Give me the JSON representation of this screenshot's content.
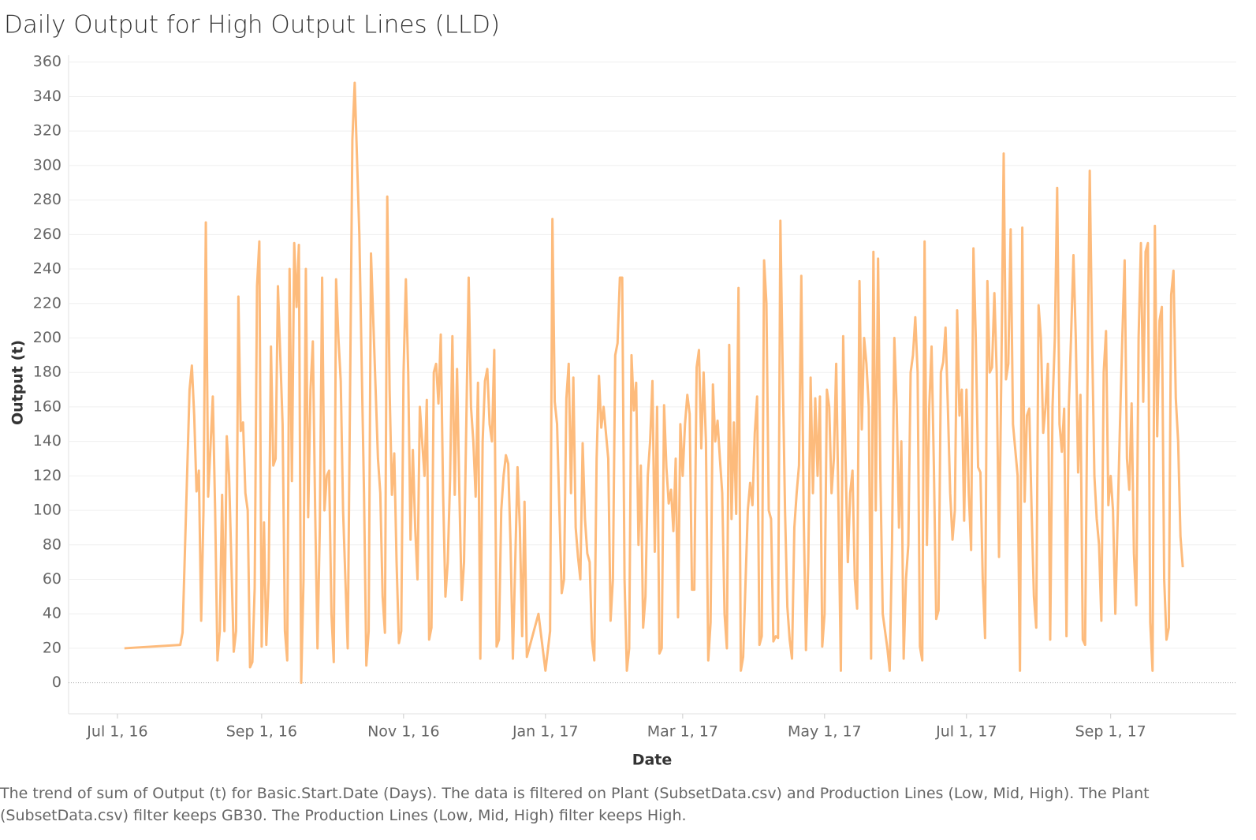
{
  "chart_data": {
    "type": "line",
    "title": "Daily Output for High Output Lines (LLD)",
    "xlabel": "Date",
    "ylabel": "Output (t)",
    "caption": "The trend of sum of Output (t) for Basic.Start.Date (Days). The data is filtered on Plant (SubsetData.csv) and Production Lines (Low, Mid, High). The Plant (SubsetData.csv) filter keeps GB30. The Production Lines (Low, Mid, High) filter keeps High.",
    "color": "#fdbb7c",
    "grid": true,
    "ylim": [
      -18,
      364
    ],
    "yticks": [
      0,
      20,
      40,
      60,
      80,
      100,
      120,
      140,
      160,
      180,
      200,
      220,
      240,
      260,
      280,
      300,
      320,
      340,
      360
    ],
    "xlim": [
      "2016-06-10",
      "2017-10-25"
    ],
    "xticks": [
      {
        "value": "2016-07-01",
        "label": "Jul 1, 16"
      },
      {
        "value": "2016-09-01",
        "label": "Sep 1, 16"
      },
      {
        "value": "2016-11-01",
        "label": "Nov 1, 16"
      },
      {
        "value": "2017-01-01",
        "label": "Jan 1, 17"
      },
      {
        "value": "2017-03-01",
        "label": "Mar 1, 17"
      },
      {
        "value": "2017-05-01",
        "label": "May 1, 17"
      },
      {
        "value": "2017-07-01",
        "label": "Jul 1, 17"
      },
      {
        "value": "2017-09-01",
        "label": "Sep 1, 17"
      }
    ],
    "x": [
      "2016-07-04",
      "2016-07-28",
      "2016-07-29",
      "2016-08-01",
      "2016-08-02",
      "2016-08-03",
      "2016-08-04",
      "2016-08-05",
      "2016-08-06",
      "2016-08-07",
      "2016-08-08",
      "2016-08-09",
      "2016-08-11",
      "2016-08-12",
      "2016-08-13",
      "2016-08-14",
      "2016-08-15",
      "2016-08-16",
      "2016-08-17",
      "2016-08-18",
      "2016-08-20",
      "2016-08-21",
      "2016-08-22",
      "2016-08-23",
      "2016-08-24",
      "2016-08-25",
      "2016-08-26",
      "2016-08-27",
      "2016-08-28",
      "2016-08-29",
      "2016-08-30",
      "2016-08-31",
      "2016-09-01",
      "2016-09-02",
      "2016-09-03",
      "2016-09-04",
      "2016-09-05",
      "2016-09-06",
      "2016-09-07",
      "2016-09-08",
      "2016-09-10",
      "2016-09-11",
      "2016-09-12",
      "2016-09-13",
      "2016-09-14",
      "2016-09-15",
      "2016-09-16",
      "2016-09-17",
      "2016-09-18",
      "2016-09-19",
      "2016-09-20",
      "2016-09-21",
      "2016-09-22",
      "2016-09-23",
      "2016-09-24",
      "2016-09-25",
      "2016-09-26",
      "2016-09-27",
      "2016-09-28",
      "2016-09-29",
      "2016-09-30",
      "2016-10-01",
      "2016-10-02",
      "2016-10-03",
      "2016-10-04",
      "2016-10-05",
      "2016-10-06",
      "2016-10-08",
      "2016-10-10",
      "2016-10-11",
      "2016-10-13",
      "2016-10-15",
      "2016-10-16",
      "2016-10-17",
      "2016-10-18",
      "2016-10-20",
      "2016-10-21",
      "2016-10-22",
      "2016-10-23",
      "2016-10-24",
      "2016-10-25",
      "2016-10-26",
      "2016-10-27",
      "2016-10-28",
      "2016-10-29",
      "2016-10-30",
      "2016-10-31",
      "2016-11-01",
      "2016-11-02",
      "2016-11-03",
      "2016-11-04",
      "2016-11-05",
      "2016-11-06",
      "2016-11-07",
      "2016-11-08",
      "2016-11-09",
      "2016-11-10",
      "2016-11-11",
      "2016-11-12",
      "2016-11-13",
      "2016-11-14",
      "2016-11-15",
      "2016-11-16",
      "2016-11-17",
      "2016-11-18",
      "2016-11-19",
      "2016-11-20",
      "2016-11-21",
      "2016-11-22",
      "2016-11-23",
      "2016-11-24",
      "2016-11-25",
      "2016-11-26",
      "2016-11-27",
      "2016-11-29",
      "2016-11-30",
      "2016-12-01",
      "2016-12-02",
      "2016-12-03",
      "2016-12-04",
      "2016-12-05",
      "2016-12-06",
      "2016-12-07",
      "2016-12-08",
      "2016-12-09",
      "2016-12-10",
      "2016-12-11",
      "2016-12-12",
      "2016-12-13",
      "2016-12-14",
      "2016-12-15",
      "2016-12-16",
      "2016-12-17",
      "2016-12-18",
      "2016-12-20",
      "2016-12-21",
      "2016-12-22",
      "2016-12-23",
      "2016-12-24",
      "2016-12-27",
      "2016-12-29",
      "2017-01-01",
      "2017-01-03",
      "2017-01-04",
      "2017-01-05",
      "2017-01-06",
      "2017-01-07",
      "2017-01-08",
      "2017-01-09",
      "2017-01-10",
      "2017-01-11",
      "2017-01-12",
      "2017-01-13",
      "2017-01-14",
      "2017-01-15",
      "2017-01-16",
      "2017-01-17",
      "2017-01-18",
      "2017-01-19",
      "2017-01-20",
      "2017-01-21",
      "2017-01-22",
      "2017-01-23",
      "2017-01-24",
      "2017-01-25",
      "2017-01-26",
      "2017-01-28",
      "2017-01-29",
      "2017-01-30",
      "2017-01-31",
      "2017-02-01",
      "2017-02-02",
      "2017-02-03",
      "2017-02-04",
      "2017-02-05",
      "2017-02-06",
      "2017-02-07",
      "2017-02-08",
      "2017-02-09",
      "2017-02-10",
      "2017-02-11",
      "2017-02-12",
      "2017-02-13",
      "2017-02-14",
      "2017-02-15",
      "2017-02-16",
      "2017-02-17",
      "2017-02-18",
      "2017-02-19",
      "2017-02-20",
      "2017-02-21",
      "2017-02-22",
      "2017-02-23",
      "2017-02-24",
      "2017-02-25",
      "2017-02-26",
      "2017-02-27",
      "2017-02-28",
      "2017-03-01",
      "2017-03-02",
      "2017-03-03",
      "2017-03-04",
      "2017-03-05",
      "2017-03-06",
      "2017-03-07",
      "2017-03-08",
      "2017-03-09",
      "2017-03-10",
      "2017-03-11",
      "2017-03-12",
      "2017-03-13",
      "2017-03-14",
      "2017-03-15",
      "2017-03-16",
      "2017-03-17",
      "2017-03-18",
      "2017-03-19",
      "2017-03-20",
      "2017-03-21",
      "2017-03-22",
      "2017-03-23",
      "2017-03-24",
      "2017-03-25",
      "2017-03-26",
      "2017-03-27",
      "2017-03-29",
      "2017-03-30",
      "2017-03-31",
      "2017-04-01",
      "2017-04-02",
      "2017-04-03",
      "2017-04-04",
      "2017-04-05",
      "2017-04-06",
      "2017-04-07",
      "2017-04-08",
      "2017-04-09",
      "2017-04-10",
      "2017-04-11",
      "2017-04-12",
      "2017-04-13",
      "2017-04-14",
      "2017-04-15",
      "2017-04-16",
      "2017-04-17",
      "2017-04-18",
      "2017-04-19",
      "2017-04-20",
      "2017-04-21",
      "2017-04-22",
      "2017-04-23",
      "2017-04-24",
      "2017-04-25",
      "2017-04-26",
      "2017-04-27",
      "2017-04-28",
      "2017-04-29",
      "2017-04-30",
      "2017-05-01",
      "2017-05-02",
      "2017-05-03",
      "2017-05-04",
      "2017-05-05",
      "2017-05-06",
      "2017-05-07",
      "2017-05-08",
      "2017-05-09",
      "2017-05-10",
      "2017-05-11",
      "2017-05-12",
      "2017-05-13",
      "2017-05-14",
      "2017-05-15",
      "2017-05-16",
      "2017-05-17",
      "2017-05-18",
      "2017-05-19",
      "2017-05-20",
      "2017-05-21",
      "2017-05-22",
      "2017-05-23",
      "2017-05-24",
      "2017-05-25",
      "2017-05-26",
      "2017-05-28",
      "2017-05-29",
      "2017-05-30",
      "2017-05-31",
      "2017-06-01",
      "2017-06-02",
      "2017-06-03",
      "2017-06-04",
      "2017-06-05",
      "2017-06-06",
      "2017-06-07",
      "2017-06-08",
      "2017-06-09",
      "2017-06-10",
      "2017-06-11",
      "2017-06-12",
      "2017-06-13",
      "2017-06-14",
      "2017-06-15",
      "2017-06-16",
      "2017-06-17",
      "2017-06-18",
      "2017-06-19",
      "2017-06-20",
      "2017-06-21",
      "2017-06-22",
      "2017-06-23",
      "2017-06-24",
      "2017-06-25",
      "2017-06-26",
      "2017-06-27",
      "2017-06-28",
      "2017-06-29",
      "2017-06-30",
      "2017-07-01",
      "2017-07-02",
      "2017-07-03",
      "2017-07-04",
      "2017-07-05",
      "2017-07-06",
      "2017-07-07",
      "2017-07-08",
      "2017-07-09",
      "2017-07-10",
      "2017-07-11",
      "2017-07-12",
      "2017-07-13",
      "2017-07-14",
      "2017-07-15",
      "2017-07-16",
      "2017-07-17",
      "2017-07-18",
      "2017-07-19",
      "2017-07-20",
      "2017-07-21",
      "2017-07-23",
      "2017-07-24",
      "2017-07-25",
      "2017-07-26",
      "2017-07-27",
      "2017-07-28",
      "2017-07-29",
      "2017-07-30",
      "2017-07-31",
      "2017-08-01",
      "2017-08-02",
      "2017-08-03",
      "2017-08-04",
      "2017-08-05",
      "2017-08-06",
      "2017-08-07",
      "2017-08-08",
      "2017-08-09",
      "2017-08-10",
      "2017-08-11",
      "2017-08-12",
      "2017-08-13",
      "2017-08-14",
      "2017-08-15",
      "2017-08-16",
      "2017-08-17",
      "2017-08-18",
      "2017-08-19",
      "2017-08-20",
      "2017-08-21",
      "2017-08-22",
      "2017-08-23",
      "2017-08-24",
      "2017-08-25",
      "2017-08-26",
      "2017-08-27",
      "2017-08-28",
      "2017-08-29",
      "2017-08-30",
      "2017-08-31",
      "2017-09-01",
      "2017-09-02",
      "2017-09-03",
      "2017-09-05",
      "2017-09-06",
      "2017-09-07",
      "2017-09-08",
      "2017-09-09",
      "2017-09-10",
      "2017-09-11",
      "2017-09-12",
      "2017-09-13",
      "2017-09-14",
      "2017-09-15",
      "2017-09-16",
      "2017-09-17",
      "2017-09-18",
      "2017-09-19",
      "2017-09-20",
      "2017-09-21",
      "2017-09-22",
      "2017-09-23",
      "2017-09-24",
      "2017-09-25",
      "2017-09-26",
      "2017-09-27",
      "2017-09-28",
      "2017-09-29",
      "2017-09-30",
      "2017-10-01",
      "2017-10-02"
    ],
    "values": [
      20,
      22,
      29,
      170,
      184,
      155,
      111,
      123,
      36,
      100,
      267,
      108,
      166,
      100,
      13,
      30,
      109,
      30,
      143,
      120,
      18,
      30,
      224,
      146,
      151,
      110,
      100,
      9,
      12,
      55,
      230,
      256,
      21,
      93,
      22,
      60,
      195,
      126,
      130,
      230,
      150,
      30,
      13,
      240,
      117,
      255,
      218,
      254,
      0,
      60,
      240,
      96,
      170,
      198,
      100,
      20,
      90,
      235,
      100,
      120,
      123,
      40,
      12,
      234,
      200,
      175,
      100,
      20,
      315,
      348,
      260,
      110,
      10,
      30,
      249,
      170,
      130,
      110,
      50,
      29,
      282,
      170,
      109,
      133,
      70,
      23,
      30,
      180,
      234,
      180,
      83,
      135,
      90,
      60,
      160,
      140,
      120,
      164,
      25,
      32,
      180,
      185,
      162,
      202,
      110,
      50,
      70,
      118,
      201,
      109,
      182,
      110,
      48,
      70,
      235,
      160,
      140,
      108,
      174,
      14,
      140,
      175,
      182,
      150,
      140,
      193,
      21,
      25,
      100,
      120,
      132,
      127,
      80,
      14,
      125,
      90,
      27,
      105,
      15,
      30,
      40,
      7,
      30,
      269,
      163,
      150,
      100,
      52,
      60,
      165,
      185,
      110,
      177,
      90,
      73,
      60,
      139,
      95,
      75,
      70,
      25,
      13,
      130,
      178,
      148,
      160,
      130,
      36,
      60,
      190,
      197,
      235,
      235,
      60,
      7,
      20,
      190,
      158,
      174,
      80,
      126,
      32,
      50,
      120,
      140,
      175,
      76,
      160,
      17,
      20,
      161,
      125,
      104,
      112,
      88,
      130,
      38,
      150,
      120,
      150,
      167,
      156,
      54,
      54,
      183,
      193,
      136,
      180,
      140,
      13,
      35,
      173,
      140,
      152,
      130,
      110,
      40,
      20,
      196,
      95,
      151,
      98,
      229,
      7,
      15,
      100,
      116,
      103,
      145,
      166,
      22,
      27,
      245,
      220,
      100,
      95,
      24,
      27,
      26,
      268,
      180,
      100,
      44,
      25,
      14,
      90,
      110,
      126,
      236,
      100,
      19,
      70,
      177,
      110,
      165,
      120,
      166,
      21,
      40,
      170,
      160,
      110,
      130,
      185,
      100,
      7,
      201,
      130,
      70,
      110,
      123,
      60,
      43,
      233,
      147,
      200,
      185,
      160,
      14,
      250,
      100,
      246,
      120,
      40,
      20,
      7,
      80,
      200,
      160,
      90,
      140,
      14,
      60,
      80,
      180,
      190,
      212,
      180,
      21,
      13,
      256,
      80,
      160,
      195,
      125,
      37,
      42,
      180,
      186,
      206,
      160,
      110,
      83,
      100,
      216,
      155,
      170,
      94,
      170,
      110,
      77,
      252,
      200,
      125,
      122,
      60,
      26,
      233,
      180,
      183,
      226,
      180,
      73,
      180,
      307,
      176,
      185,
      263,
      150,
      120,
      7,
      264,
      105,
      155,
      159,
      100,
      50,
      32,
      219,
      200,
      145,
      160,
      185,
      25,
      160,
      200,
      287,
      150,
      134,
      159,
      27,
      160,
      202,
      248,
      200,
      122,
      167,
      25,
      22,
      170,
      297,
      200,
      120,
      95,
      80,
      36,
      180,
      204,
      103,
      120,
      100,
      40,
      150,
      200,
      245,
      130,
      112,
      162,
      75,
      45,
      200,
      255,
      163,
      250,
      255,
      35,
      7,
      265,
      143,
      210,
      218,
      60,
      25,
      32,
      225,
      239,
      165,
      140,
      85,
      67
    ]
  }
}
